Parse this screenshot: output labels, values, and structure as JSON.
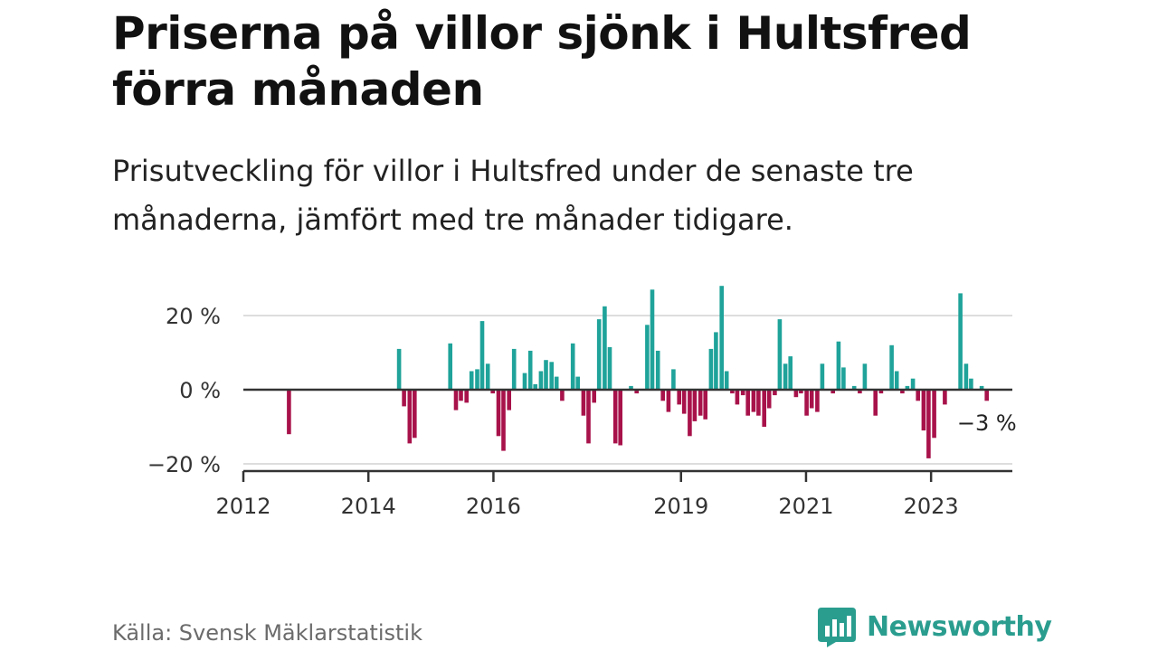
{
  "title": "Priserna på villor sjönk i Hultsfred förra månaden",
  "subtitle": "Prisutveckling för villor i Hultsfred under de senaste tre månaderna, jämfört med tre månader tidigare.",
  "source": "Källa: Svensk Mäklarstatistik",
  "brand": "Newsworthy",
  "colors": {
    "positive": "#1fa39a",
    "negative": "#a8124a",
    "axis": "#333333",
    "grid": "#dddddd",
    "brand": "#2a9d8f"
  },
  "chart_data": {
    "type": "bar",
    "ylabel": "",
    "xlabel": "",
    "ylim": [
      -22,
      30
    ],
    "xlim": [
      2012.0,
      2024.3
    ],
    "y_ticks": [
      {
        "value": 20,
        "label": "20 %"
      },
      {
        "value": 0,
        "label": "0 %"
      },
      {
        "value": -20,
        "label": "−20 %"
      }
    ],
    "x_ticks": [
      {
        "value": 2012,
        "label": "2012"
      },
      {
        "value": 2014,
        "label": "2014"
      },
      {
        "value": 2016,
        "label": "2016"
      },
      {
        "value": 2019,
        "label": "2019"
      },
      {
        "value": 2021,
        "label": "2021"
      },
      {
        "value": 2023,
        "label": "2023"
      }
    ],
    "annotation": {
      "label": "−3 %",
      "t": 2023.89,
      "value": -3
    },
    "series": [
      {
        "name": "Prisutveckling",
        "points": [
          {
            "t": 2012.73,
            "v": -12
          },
          {
            "t": 2014.49,
            "v": 11
          },
          {
            "t": 2014.57,
            "v": -4.5
          },
          {
            "t": 2014.66,
            "v": -14.5
          },
          {
            "t": 2014.74,
            "v": -13
          },
          {
            "t": 2015.31,
            "v": 12.5
          },
          {
            "t": 2015.4,
            "v": -5.5
          },
          {
            "t": 2015.48,
            "v": -3
          },
          {
            "t": 2015.57,
            "v": -3.5
          },
          {
            "t": 2015.65,
            "v": 5
          },
          {
            "t": 2015.74,
            "v": 5.5
          },
          {
            "t": 2015.82,
            "v": 18.5
          },
          {
            "t": 2015.91,
            "v": 7
          },
          {
            "t": 2015.99,
            "v": -1
          },
          {
            "t": 2016.08,
            "v": -12.5
          },
          {
            "t": 2016.16,
            "v": -16.5
          },
          {
            "t": 2016.25,
            "v": -5.5
          },
          {
            "t": 2016.33,
            "v": 11
          },
          {
            "t": 2016.5,
            "v": 4.5
          },
          {
            "t": 2016.59,
            "v": 10.5
          },
          {
            "t": 2016.67,
            "v": 1.5
          },
          {
            "t": 2016.76,
            "v": 5
          },
          {
            "t": 2016.84,
            "v": 8
          },
          {
            "t": 2016.93,
            "v": 7.5
          },
          {
            "t": 2017.01,
            "v": 3.5
          },
          {
            "t": 2017.1,
            "v": -3
          },
          {
            "t": 2017.27,
            "v": 12.5
          },
          {
            "t": 2017.35,
            "v": 3.5
          },
          {
            "t": 2017.44,
            "v": -7
          },
          {
            "t": 2017.52,
            "v": -14.5
          },
          {
            "t": 2017.61,
            "v": -3.5
          },
          {
            "t": 2017.69,
            "v": 19
          },
          {
            "t": 2017.78,
            "v": 22.5
          },
          {
            "t": 2017.86,
            "v": 11.5
          },
          {
            "t": 2017.95,
            "v": -14.5
          },
          {
            "t": 2018.03,
            "v": -15
          },
          {
            "t": 2018.2,
            "v": 1
          },
          {
            "t": 2018.29,
            "v": -1
          },
          {
            "t": 2018.46,
            "v": 17.5
          },
          {
            "t": 2018.54,
            "v": 27
          },
          {
            "t": 2018.63,
            "v": 10.5
          },
          {
            "t": 2018.71,
            "v": -3
          },
          {
            "t": 2018.8,
            "v": -6
          },
          {
            "t": 2018.88,
            "v": 5.5
          },
          {
            "t": 2018.97,
            "v": -4
          },
          {
            "t": 2019.05,
            "v": -6.5
          },
          {
            "t": 2019.14,
            "v": -12.5
          },
          {
            "t": 2019.22,
            "v": -8.5
          },
          {
            "t": 2019.31,
            "v": -7
          },
          {
            "t": 2019.39,
            "v": -8
          },
          {
            "t": 2019.48,
            "v": 11
          },
          {
            "t": 2019.56,
            "v": 15.5
          },
          {
            "t": 2019.65,
            "v": 28
          },
          {
            "t": 2019.73,
            "v": 5
          },
          {
            "t": 2019.82,
            "v": -1
          },
          {
            "t": 2019.9,
            "v": -4
          },
          {
            "t": 2019.99,
            "v": -1.5
          },
          {
            "t": 2020.07,
            "v": -7
          },
          {
            "t": 2020.16,
            "v": -6
          },
          {
            "t": 2020.24,
            "v": -7
          },
          {
            "t": 2020.33,
            "v": -10
          },
          {
            "t": 2020.41,
            "v": -5
          },
          {
            "t": 2020.5,
            "v": -1.5
          },
          {
            "t": 2020.58,
            "v": 19
          },
          {
            "t": 2020.67,
            "v": 7
          },
          {
            "t": 2020.75,
            "v": 9
          },
          {
            "t": 2020.84,
            "v": -2
          },
          {
            "t": 2020.92,
            "v": -1
          },
          {
            "t": 2021.01,
            "v": -7
          },
          {
            "t": 2021.09,
            "v": -5
          },
          {
            "t": 2021.18,
            "v": -6
          },
          {
            "t": 2021.26,
            "v": 7
          },
          {
            "t": 2021.43,
            "v": -1
          },
          {
            "t": 2021.52,
            "v": 13
          },
          {
            "t": 2021.6,
            "v": 6
          },
          {
            "t": 2021.77,
            "v": 1
          },
          {
            "t": 2021.86,
            "v": -1
          },
          {
            "t": 2021.94,
            "v": 7
          },
          {
            "t": 2022.11,
            "v": -7
          },
          {
            "t": 2022.2,
            "v": -1
          },
          {
            "t": 2022.37,
            "v": 12
          },
          {
            "t": 2022.45,
            "v": 5
          },
          {
            "t": 2022.54,
            "v": -1
          },
          {
            "t": 2022.62,
            "v": 1
          },
          {
            "t": 2022.71,
            "v": 3
          },
          {
            "t": 2022.79,
            "v": -3
          },
          {
            "t": 2022.88,
            "v": -11
          },
          {
            "t": 2022.96,
            "v": -18.5
          },
          {
            "t": 2023.05,
            "v": -13
          },
          {
            "t": 2023.22,
            "v": -4
          },
          {
            "t": 2023.47,
            "v": 26
          },
          {
            "t": 2023.56,
            "v": 7
          },
          {
            "t": 2023.64,
            "v": 3
          },
          {
            "t": 2023.81,
            "v": 1
          },
          {
            "t": 2023.89,
            "v": -3
          }
        ]
      }
    ]
  }
}
